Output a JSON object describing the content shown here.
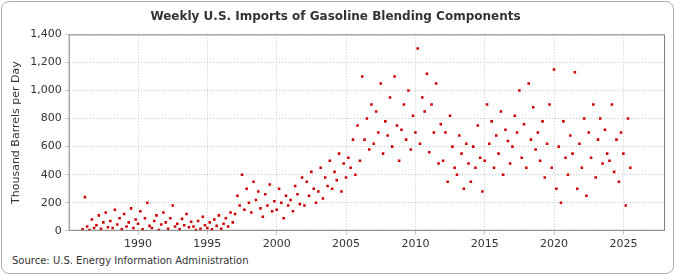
{
  "chart_data": {
    "type": "scatter",
    "title": "Weekly U.S. Imports of Gasoline Blending Components",
    "y_label": "Thousand Barrels per Day",
    "annotations": [
      "Source: U.S. Energy Information Administration"
    ],
    "color": "#cc0000",
    "marker": "square",
    "grid": true,
    "xlim": [
      1985,
      2028
    ],
    "xticks": [
      1990,
      1995,
      2000,
      2005,
      2010,
      2015,
      2020,
      2025
    ],
    "ylim": [
      0,
      1400
    ],
    "yticks": [
      0,
      200,
      400,
      600,
      800,
      {
        "value": 1000,
        "label": "1,000"
      },
      {
        "value": 1200,
        "label": "1,200"
      },
      {
        "value": 1400,
        "label": "1,400"
      }
    ],
    "x": [
      1986,
      1986.17,
      1986.33,
      1986.5,
      1986.67,
      1986.83,
      1987,
      1987.17,
      1987.33,
      1987.5,
      1987.67,
      1987.83,
      1988,
      1988.17,
      1988.33,
      1988.5,
      1988.67,
      1988.83,
      1989,
      1989.17,
      1989.33,
      1989.5,
      1989.67,
      1989.83,
      1990,
      1990.17,
      1990.33,
      1990.5,
      1990.67,
      1990.83,
      1991,
      1991.17,
      1991.33,
      1991.5,
      1991.67,
      1991.83,
      1992,
      1992.17,
      1992.33,
      1992.5,
      1992.67,
      1992.83,
      1993,
      1993.17,
      1993.33,
      1993.5,
      1993.67,
      1993.83,
      1994,
      1994.17,
      1994.33,
      1994.5,
      1994.67,
      1994.83,
      1995,
      1995.17,
      1995.33,
      1995.5,
      1995.67,
      1995.83,
      1996,
      1996.17,
      1996.33,
      1996.5,
      1996.67,
      1996.83,
      1997,
      1997.17,
      1997.33,
      1997.5,
      1997.67,
      1997.83,
      1998,
      1998.17,
      1998.33,
      1998.5,
      1998.67,
      1998.83,
      1999,
      1999.17,
      1999.33,
      1999.5,
      1999.67,
      1999.83,
      2000,
      2000.17,
      2000.33,
      2000.5,
      2000.67,
      2000.83,
      2001,
      2001.17,
      2001.33,
      2001.5,
      2001.67,
      2001.83,
      2002,
      2002.17,
      2002.33,
      2002.5,
      2002.67,
      2002.83,
      2003,
      2003.17,
      2003.33,
      2003.5,
      2003.67,
      2003.83,
      2004,
      2004.17,
      2004.33,
      2004.5,
      2004.67,
      2004.83,
      2005,
      2005.17,
      2005.33,
      2005.5,
      2005.67,
      2005.83,
      2006,
      2006.17,
      2006.33,
      2006.5,
      2006.67,
      2006.83,
      2007,
      2007.17,
      2007.33,
      2007.5,
      2007.67,
      2007.83,
      2008,
      2008.17,
      2008.33,
      2008.5,
      2008.67,
      2008.83,
      2009,
      2009.17,
      2009.33,
      2009.5,
      2009.67,
      2009.83,
      2010,
      2010.17,
      2010.33,
      2010.5,
      2010.67,
      2010.83,
      2011,
      2011.17,
      2011.33,
      2011.5,
      2011.67,
      2011.83,
      2012,
      2012.17,
      2012.33,
      2012.5,
      2012.67,
      2012.83,
      2013,
      2013.17,
      2013.33,
      2013.5,
      2013.67,
      2013.83,
      2014,
      2014.17,
      2014.33,
      2014.5,
      2014.67,
      2014.83,
      2015,
      2015.17,
      2015.33,
      2015.5,
      2015.67,
      2015.83,
      2016,
      2016.17,
      2016.33,
      2016.5,
      2016.67,
      2016.83,
      2017,
      2017.17,
      2017.33,
      2017.5,
      2017.67,
      2017.83,
      2018,
      2018.17,
      2018.33,
      2018.5,
      2018.67,
      2018.83,
      2019,
      2019.17,
      2019.33,
      2019.5,
      2019.67,
      2019.83,
      2020,
      2020.17,
      2020.33,
      2020.5,
      2020.67,
      2020.83,
      2021,
      2021.17,
      2021.33,
      2021.5,
      2021.67,
      2021.83,
      2022,
      2022.17,
      2022.33,
      2022.5,
      2022.67,
      2022.83,
      2023,
      2023.17,
      2023.33,
      2023.5,
      2023.67,
      2023.83,
      2024,
      2024.17,
      2024.33,
      2024.5,
      2024.67,
      2024.83,
      2025,
      2025.17,
      2025.33,
      2025.5
    ],
    "values": [
      10,
      240,
      30,
      5,
      80,
      20,
      40,
      110,
      15,
      60,
      130,
      25,
      70,
      20,
      150,
      45,
      90,
      10,
      120,
      30,
      60,
      160,
      20,
      80,
      50,
      140,
      10,
      90,
      200,
      35,
      20,
      70,
      110,
      5,
      45,
      130,
      60,
      15,
      90,
      180,
      30,
      50,
      10,
      85,
      40,
      120,
      25,
      65,
      30,
      5,
      70,
      15,
      100,
      40,
      20,
      60,
      10,
      80,
      35,
      110,
      15,
      50,
      90,
      30,
      130,
      60,
      120,
      250,
      180,
      400,
      150,
      300,
      200,
      130,
      350,
      220,
      280,
      160,
      100,
      260,
      180,
      330,
      140,
      210,
      150,
      300,
      200,
      90,
      250,
      180,
      220,
      140,
      320,
      260,
      190,
      380,
      180,
      350,
      250,
      420,
      300,
      200,
      280,
      450,
      230,
      380,
      320,
      500,
      300,
      420,
      360,
      550,
      280,
      480,
      380,
      520,
      450,
      650,
      400,
      750,
      500,
      1100,
      650,
      800,
      580,
      900,
      620,
      850,
      700,
      1050,
      550,
      780,
      680,
      950,
      600,
      1100,
      750,
      500,
      720,
      900,
      650,
      1000,
      580,
      820,
      700,
      1300,
      620,
      950,
      850,
      1120,
      560,
      900,
      700,
      1050,
      480,
      760,
      500,
      700,
      350,
      820,
      600,
      450,
      400,
      680,
      550,
      300,
      620,
      480,
      350,
      600,
      450,
      750,
      520,
      280,
      500,
      900,
      620,
      780,
      450,
      680,
      550,
      850,
      400,
      720,
      640,
      480,
      600,
      820,
      700,
      1000,
      520,
      760,
      450,
      1050,
      650,
      880,
      580,
      700,
      500,
      780,
      380,
      620,
      900,
      450,
      1150,
      300,
      600,
      200,
      780,
      520,
      400,
      680,
      550,
      1130,
      300,
      620,
      450,
      800,
      250,
      700,
      520,
      900,
      380,
      650,
      800,
      480,
      720,
      550,
      500,
      900,
      420,
      650,
      350,
      700,
      550,
      180,
      800,
      450
    ]
  }
}
